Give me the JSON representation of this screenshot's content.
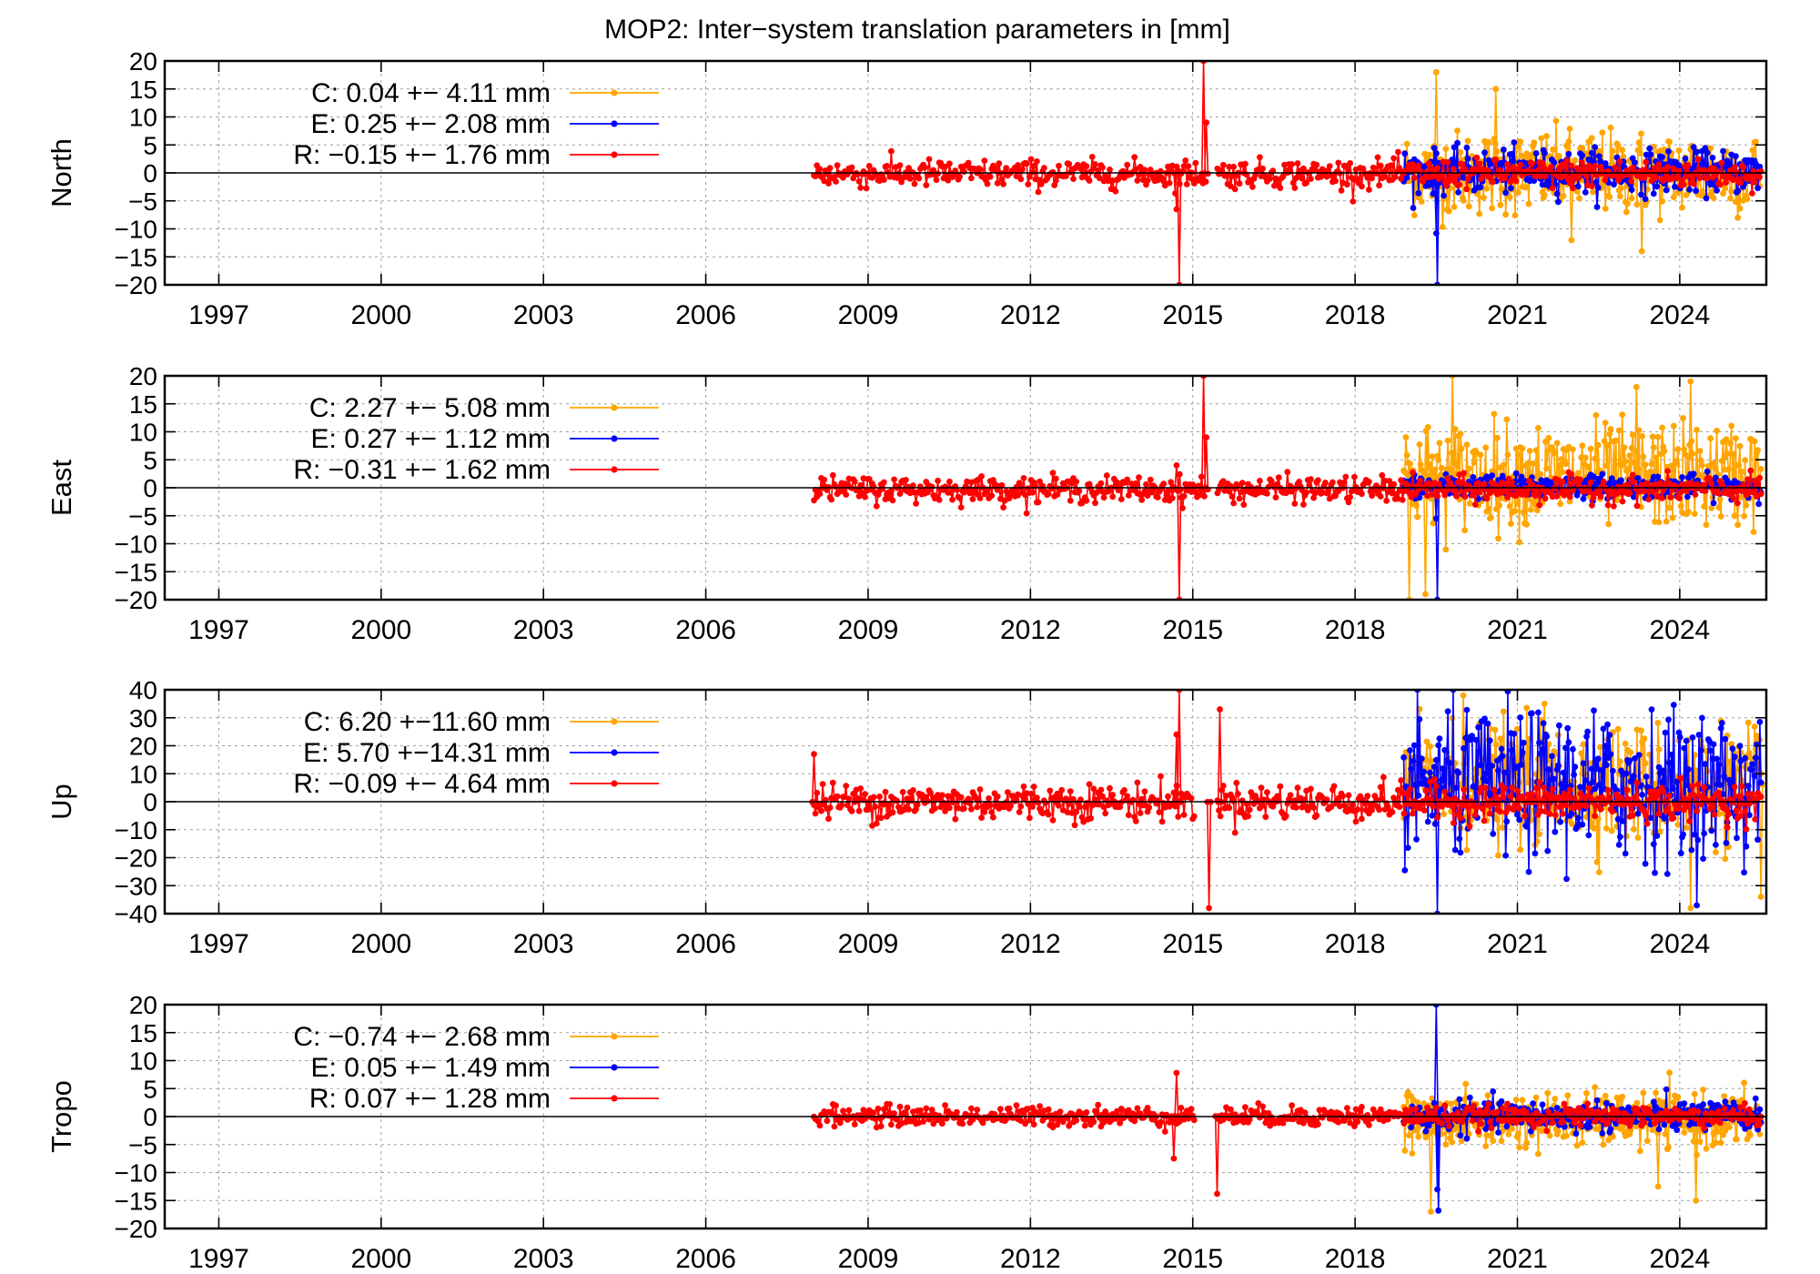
{
  "title": "MOP2: Inter−system translation parameters in [mm]",
  "colors": {
    "C": "#ffa500",
    "E": "#0000ff",
    "R": "#ff0000",
    "zero_line": "#000000",
    "grid": "#a0a0a0"
  },
  "chart_data": [
    {
      "type": "line",
      "ylabel": "North",
      "ylim": [
        -20,
        20
      ],
      "yticks": [
        20,
        15,
        10,
        5,
        0,
        -5,
        -10,
        -15,
        -20
      ],
      "ytick_labels": [
        "20",
        "15",
        "10",
        "5",
        "0",
        "−5",
        "−10",
        "−15",
        "−20"
      ],
      "xlim": [
        1996,
        2025.6
      ],
      "xticks": [
        1997,
        2000,
        2003,
        2006,
        2009,
        2012,
        2015,
        2018,
        2021,
        2024
      ],
      "grid": true,
      "legend_position": "top-left",
      "series": [
        {
          "name": "C",
          "legend": "C:   0.04 +− 4.11 mm",
          "mean": 0.04,
          "std": 4.11,
          "start": 2018.9,
          "end": 2025.5,
          "outliers": [
            [
              2019.5,
              18
            ],
            [
              2020.6,
              15
            ],
            [
              2022.0,
              -12
            ],
            [
              2023.3,
              -14
            ]
          ]
        },
        {
          "name": "E",
          "legend": "E:   0.25 +− 2.08 mm",
          "mean": 0.25,
          "std": 2.08,
          "start": 2018.9,
          "end": 2025.5,
          "outliers": [
            [
              2019.5,
              -10.8
            ],
            [
              2019.52,
              -20
            ]
          ]
        },
        {
          "name": "R",
          "legend": "R:  −0.15 +− 1.76 mm",
          "mean": -0.15,
          "std": 1.76,
          "start": 2008.0,
          "end": 2025.5,
          "gaps": [
            [
              2015.25,
              2015.45
            ]
          ],
          "outliers": [
            [
              2014.75,
              -20
            ],
            [
              2015.2,
              20
            ],
            [
              2015.25,
              9
            ],
            [
              2014.7,
              -6.5
            ]
          ]
        }
      ]
    },
    {
      "type": "line",
      "ylabel": "East",
      "ylim": [
        -20,
        20
      ],
      "yticks": [
        20,
        15,
        10,
        5,
        0,
        -5,
        -10,
        -15,
        -20
      ],
      "ytick_labels": [
        "20",
        "15",
        "10",
        "5",
        "0",
        "−5",
        "−10",
        "−15",
        "−20"
      ],
      "xlim": [
        1996,
        2025.6
      ],
      "xticks": [
        1997,
        2000,
        2003,
        2006,
        2009,
        2012,
        2015,
        2018,
        2021,
        2024
      ],
      "grid": true,
      "legend_position": "top-left",
      "series": [
        {
          "name": "C",
          "legend": "C:   2.27 +− 5.08 mm",
          "mean": 2.27,
          "std": 5.08,
          "start": 2018.9,
          "end": 2025.5,
          "outliers": [
            [
              2019.0,
              -20
            ],
            [
              2019.3,
              -19
            ],
            [
              2019.8,
              20
            ],
            [
              2023.2,
              18
            ],
            [
              2024.2,
              19
            ]
          ]
        },
        {
          "name": "E",
          "legend": "E:   0.27 +− 1.12 mm",
          "mean": 0.27,
          "std": 1.12,
          "start": 2018.9,
          "end": 2025.5,
          "outliers": [
            [
              2019.5,
              -5.5
            ],
            [
              2019.52,
              -20
            ]
          ]
        },
        {
          "name": "R",
          "legend": "R:  −0.31 +− 1.62 mm",
          "mean": -0.31,
          "std": 1.62,
          "start": 2008.0,
          "end": 2025.5,
          "gaps": [
            [
              2015.25,
              2015.45
            ]
          ],
          "outliers": [
            [
              2014.75,
              -20
            ],
            [
              2015.2,
              20
            ],
            [
              2015.25,
              9
            ],
            [
              2014.7,
              4
            ]
          ]
        }
      ]
    },
    {
      "type": "line",
      "ylabel": "Up",
      "ylim": [
        -40,
        40
      ],
      "yticks": [
        40,
        30,
        20,
        10,
        0,
        -10,
        -20,
        -30,
        -40
      ],
      "ytick_labels": [
        "40",
        "30",
        "20",
        "10",
        "0",
        "−10",
        "−20",
        "−30",
        "−40"
      ],
      "xlim": [
        1996,
        2025.6
      ],
      "xticks": [
        1997,
        2000,
        2003,
        2006,
        2009,
        2012,
        2015,
        2018,
        2021,
        2024
      ],
      "grid": true,
      "legend_position": "top-left",
      "series": [
        {
          "name": "C",
          "legend": "C:   6.20 +−11.60 mm",
          "mean": 6.2,
          "std": 11.6,
          "start": 2018.9,
          "end": 2025.5,
          "outliers": [
            [
              2020.0,
              38
            ],
            [
              2021.5,
              35
            ],
            [
              2024.2,
              -38
            ],
            [
              2025.5,
              -34
            ]
          ]
        },
        {
          "name": "E",
          "legend": "E:   5.70 +−14.31 mm",
          "mean": 5.7,
          "std": 14.31,
          "start": 2018.9,
          "end": 2025.5,
          "outliers": [
            [
              2019.5,
              -5
            ],
            [
              2019.52,
              -40
            ]
          ]
        },
        {
          "name": "R",
          "legend": "R:  −0.09 +− 4.64 mm",
          "mean": -0.09,
          "std": 4.64,
          "start": 2008.0,
          "end": 2025.5,
          "gaps": [
            [
              2015.05,
              2015.45
            ]
          ],
          "outliers": [
            [
              2014.75,
              40
            ],
            [
              2014.7,
              24
            ],
            [
              2015.3,
              -38
            ],
            [
              2015.5,
              33
            ],
            [
              2008.0,
              17
            ]
          ]
        }
      ]
    },
    {
      "type": "line",
      "ylabel": "Tropo",
      "ylim": [
        -20,
        20
      ],
      "yticks": [
        20,
        15,
        10,
        5,
        0,
        -5,
        -10,
        -15,
        -20
      ],
      "ytick_labels": [
        "20",
        "15",
        "10",
        "5",
        "0",
        "−5",
        "−10",
        "−15",
        "−20"
      ],
      "xlim": [
        1996,
        2025.6
      ],
      "xticks": [
        1997,
        2000,
        2003,
        2006,
        2009,
        2012,
        2015,
        2018,
        2021,
        2024
      ],
      "grid": true,
      "legend_position": "top-left",
      "series": [
        {
          "name": "C",
          "legend": "C:  −0.74 +− 2.68 mm",
          "mean": -0.74,
          "std": 2.68,
          "start": 2018.9,
          "end": 2025.5,
          "outliers": [
            [
              2019.4,
              -17
            ],
            [
              2023.6,
              -12.5
            ],
            [
              2024.3,
              -15
            ]
          ]
        },
        {
          "name": "E",
          "legend": "E:   0.05 +− 1.49 mm",
          "mean": 0.05,
          "std": 1.49,
          "start": 2018.9,
          "end": 2025.5,
          "outliers": [
            [
              2019.5,
              20
            ],
            [
              2019.52,
              -13
            ],
            [
              2019.54,
              -16.8
            ]
          ]
        },
        {
          "name": "R",
          "legend": "R:   0.07 +− 1.28 mm",
          "mean": 0.07,
          "std": 1.28,
          "start": 2008.0,
          "end": 2025.5,
          "gaps": [
            [
              2015.05,
              2015.45
            ]
          ],
          "outliers": [
            [
              2014.7,
              7.8
            ],
            [
              2014.65,
              -7.5
            ],
            [
              2015.45,
              -13.8
            ]
          ]
        }
      ]
    }
  ]
}
